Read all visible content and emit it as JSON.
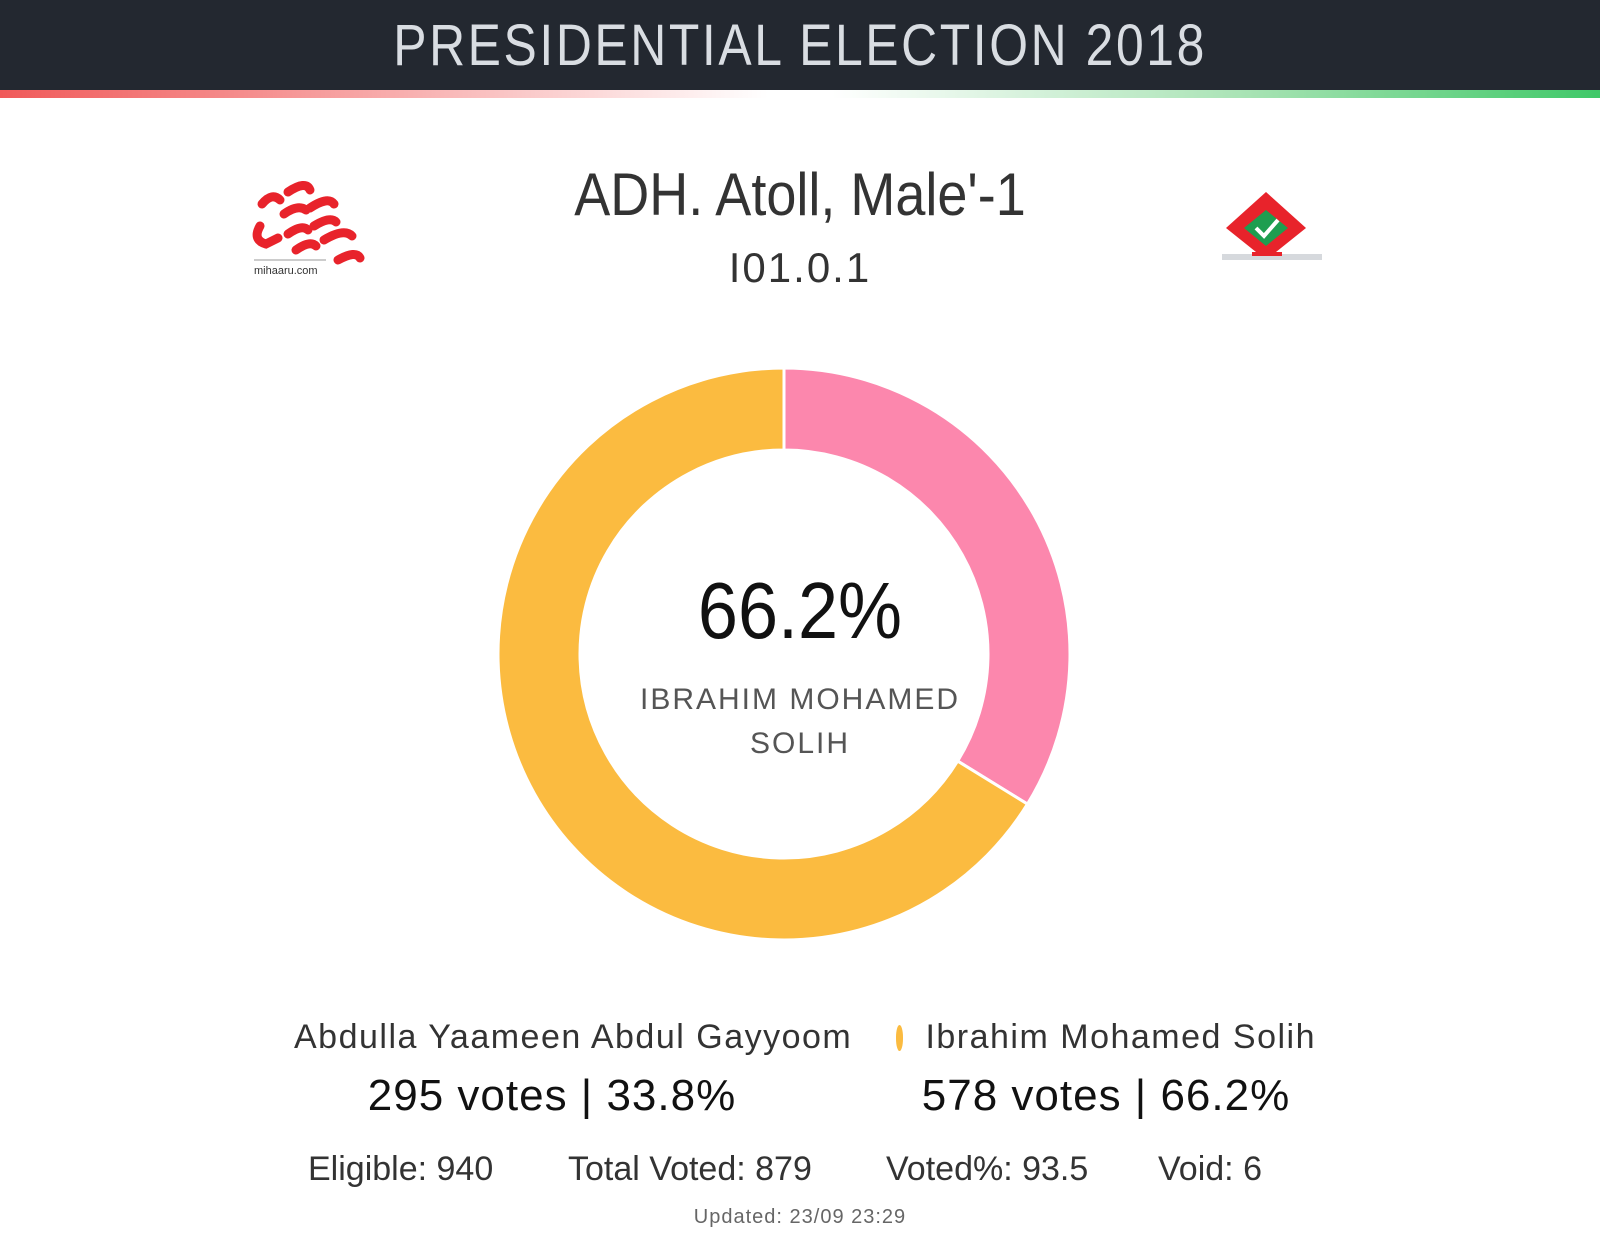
{
  "header": {
    "title": "PRESIDENTIAL ELECTION 2018"
  },
  "location": {
    "name": "ADH. Atoll, Male'-1",
    "code": "I01.0.1"
  },
  "logos": {
    "left": "mihaaru.com"
  },
  "chart_data": {
    "type": "pie",
    "donut": true,
    "center": {
      "value": "66.2%",
      "label": "IBRAHIM MOHAMED SOLIH"
    },
    "series": [
      {
        "name": "Abdulla Yaameen Abdul Gayyoom",
        "value": 295,
        "percent": 33.8,
        "color": "#fc87ad",
        "label": "295 votes | 33.8%"
      },
      {
        "name": "Ibrahim Mohamed Solih",
        "value": 578,
        "percent": 66.2,
        "color": "#fbbb40",
        "label": "578 votes | 66.2%"
      }
    ]
  },
  "stats": {
    "eligible": "Eligible: 940",
    "total_voted": "Total Voted: 879",
    "voted_pct": "Voted%: 93.5",
    "void": "Void: 6"
  },
  "updated": "Updated: 23/09 23:29",
  "colors": {
    "header_bg": "#232830",
    "accent_red": "#f05a5a",
    "accent_green": "#3fc868"
  }
}
